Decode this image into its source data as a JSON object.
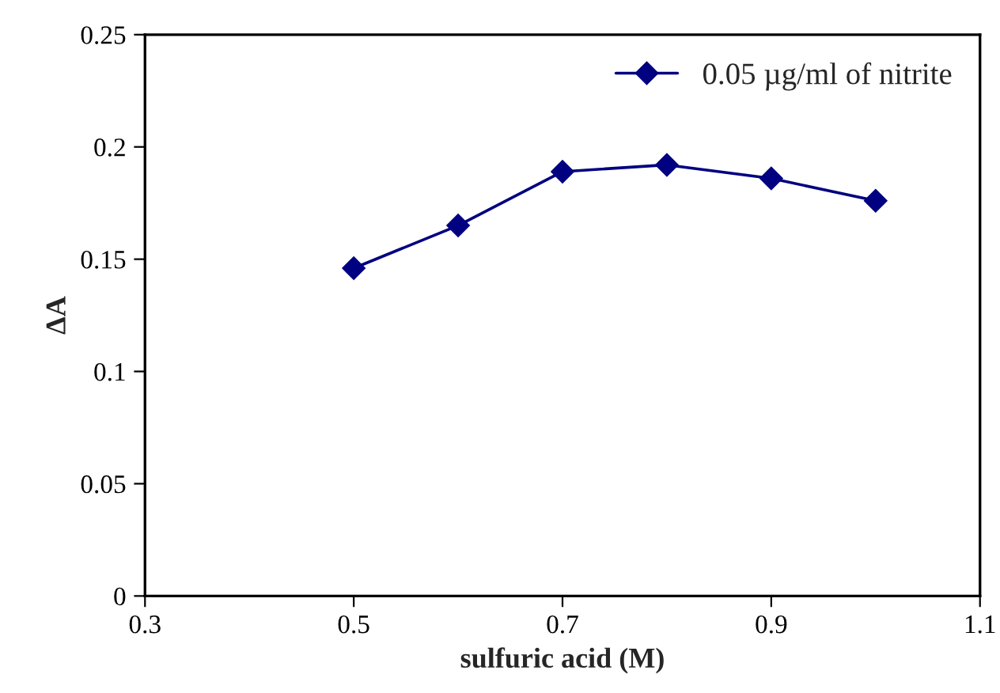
{
  "chart_data": {
    "type": "line",
    "xlabel": "sulfuric acid (M)",
    "ylabel": "ΔA",
    "x": [
      0.5,
      0.6,
      0.7,
      0.8,
      0.9,
      1.0
    ],
    "series": [
      {
        "name": "0.05 µg/ml of nitrite",
        "color": "#000080",
        "values": [
          0.146,
          0.165,
          0.189,
          0.192,
          0.186,
          0.176
        ]
      }
    ],
    "xlim": [
      0.3,
      1.1
    ],
    "xticks": [
      0.3,
      0.5,
      0.7,
      0.9,
      1.1
    ],
    "ylim": [
      0,
      0.25
    ],
    "yticks": [
      0,
      0.05,
      0.1,
      0.15,
      0.2,
      0.25
    ],
    "grid": false,
    "legend": "top right",
    "marker": "diamond",
    "line_style": "solid"
  }
}
